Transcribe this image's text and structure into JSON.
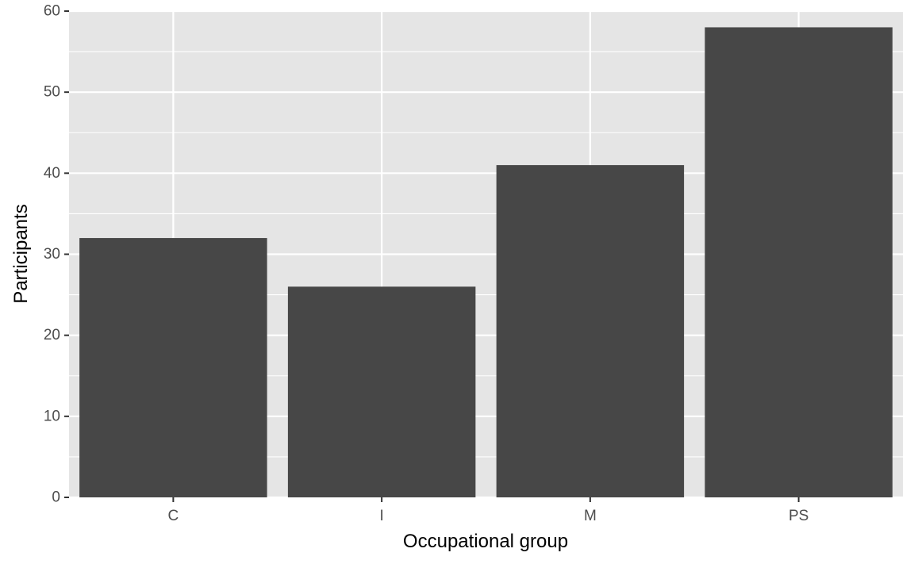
{
  "chart_data": {
    "type": "bar",
    "categories": [
      "C",
      "I",
      "M",
      "PS"
    ],
    "values": [
      32,
      26,
      41,
      58
    ],
    "title": "",
    "xlabel": "Occupational group",
    "ylabel": "Participants",
    "ylim": [
      0,
      60
    ],
    "yticks": [
      0,
      10,
      20,
      30,
      40,
      50,
      60
    ],
    "grid": true,
    "legend": "none",
    "colors": {
      "bar": "#474747",
      "panel": "#e5e5e5",
      "grid_major": "#ffffff",
      "tick": "#333333"
    }
  }
}
